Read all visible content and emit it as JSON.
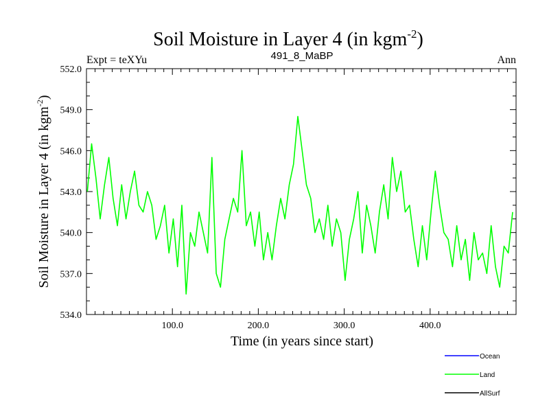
{
  "chart_data": {
    "type": "line",
    "title": "Soil Moisture in Layer 4 (in kgm",
    "title_superscript": "-2",
    "title_close": ")",
    "left_subtitle": "Expt = teXYu",
    "center_subtitle": "491_8_MaBP",
    "right_subtitle": "Ann",
    "xlabel": "Time (in years since start)",
    "ylabel": "Soil Moisture in Layer 4 (in kgm",
    "ylabel_superscript": "-2",
    "ylabel_close": ")",
    "xlim": [
      0,
      500
    ],
    "ylim": [
      534,
      552
    ],
    "x_ticks": [
      100,
      200,
      300,
      400
    ],
    "x_tick_labels": [
      "100.0",
      "200.0",
      "300.0",
      "400.0"
    ],
    "y_ticks": [
      534,
      537,
      540,
      543,
      546,
      549,
      552
    ],
    "y_tick_labels": [
      "534.0",
      "537.0",
      "540.0",
      "543.0",
      "546.0",
      "549.0",
      "552.0"
    ],
    "legend": [
      {
        "name": "Ocean",
        "color": "#0000ff"
      },
      {
        "name": "Land",
        "color": "#00ff00"
      },
      {
        "name": "AllSurf",
        "color": "#000000"
      }
    ],
    "series": [
      {
        "name": "Land",
        "color": "#00ff00",
        "x_start": 1,
        "x_step": 5,
        "values": [
          543.0,
          546.5,
          544.0,
          541.0,
          543.5,
          545.5,
          542.5,
          540.5,
          543.5,
          541.0,
          543.0,
          544.5,
          542.0,
          541.5,
          543.0,
          542.0,
          539.5,
          540.5,
          542.0,
          538.5,
          541.0,
          537.5,
          542.0,
          535.5,
          540.0,
          539.0,
          541.5,
          540.0,
          538.5,
          545.5,
          537.0,
          536.0,
          539.5,
          541.0,
          542.5,
          541.5,
          546.0,
          540.5,
          541.5,
          539.0,
          541.5,
          538.0,
          540.0,
          538.0,
          540.5,
          542.5,
          541.0,
          543.5,
          545.0,
          548.5,
          546.0,
          543.5,
          542.5,
          540.0,
          541.0,
          539.5,
          542.0,
          539.0,
          541.0,
          540.0,
          536.5,
          539.5,
          541.0,
          543.0,
          538.5,
          542.0,
          540.5,
          538.5,
          541.5,
          543.5,
          541.0,
          545.5,
          543.0,
          544.5,
          541.5,
          542.0,
          539.5,
          537.5,
          540.5,
          538.0,
          541.5,
          544.5,
          542.0,
          540.0,
          539.5,
          537.5,
          540.5,
          538.0,
          539.5,
          536.5,
          540.0,
          538.0,
          538.5,
          537.0,
          540.5,
          537.5,
          536.0,
          539.0,
          538.5,
          541.5
        ]
      }
    ]
  }
}
